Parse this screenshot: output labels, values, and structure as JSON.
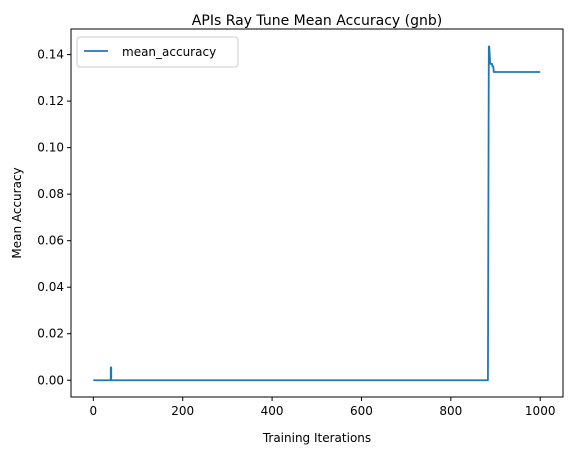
{
  "chart_data": {
    "type": "line",
    "title": "APIs Ray Tune Mean Accuracy (gnb)",
    "xlabel": "Training Iterations",
    "ylabel": "Mean Accuracy",
    "xlim": [
      -50,
      1051
    ],
    "ylim": [
      -0.0072,
      0.151
    ],
    "xticks": [
      0,
      200,
      400,
      600,
      800,
      1000
    ],
    "xtick_labels": [
      "0",
      "200",
      "400",
      "600",
      "800",
      "1000"
    ],
    "yticks": [
      0.0,
      0.02,
      0.04,
      0.06,
      0.08,
      0.1,
      0.12,
      0.14
    ],
    "ytick_labels": [
      "0.00",
      "0.02",
      "0.04",
      "0.06",
      "0.08",
      "0.10",
      "0.12",
      "0.14"
    ],
    "grid": false,
    "legend_position": "top-left",
    "series": [
      {
        "name": "mean_accuracy",
        "color": "#1f77b4",
        "x": [
          0,
          38,
          39,
          39,
          40,
          40,
          883,
          885,
          886,
          887,
          888,
          890,
          892,
          893,
          895,
          896,
          1000
        ],
        "y": [
          0,
          0,
          0,
          0.0055,
          0.0055,
          0,
          0,
          0.1435,
          0.1435,
          0.14,
          0.136,
          0.136,
          0.136,
          0.135,
          0.135,
          0.1325,
          0.1325
        ]
      }
    ]
  }
}
